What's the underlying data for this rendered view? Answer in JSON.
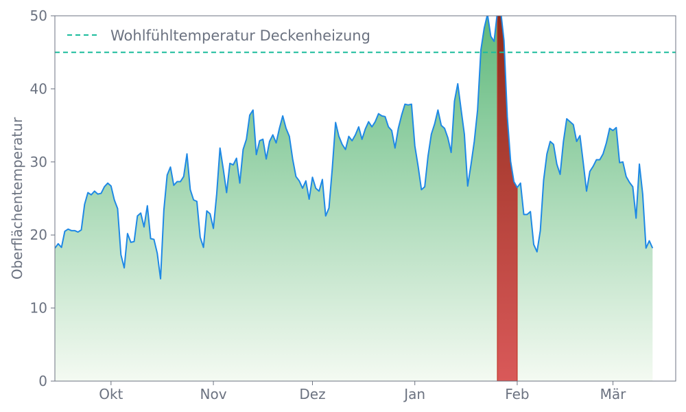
{
  "chart_data": {
    "type": "area",
    "title": "",
    "xlabel": "",
    "ylabel": "Oberflächentemperatur",
    "ylim": [
      0,
      50
    ],
    "xlim": [
      "2023-09-14",
      "2024-03-20"
    ],
    "yticks": [
      0,
      10,
      20,
      30,
      40,
      50
    ],
    "xticks": [
      {
        "date": "2023-10-01",
        "label": "Okt"
      },
      {
        "date": "2023-11-01",
        "label": "Nov"
      },
      {
        "date": "2023-12-01",
        "label": "Dez"
      },
      {
        "date": "2024-01-01",
        "label": "Jan"
      },
      {
        "date": "2024-02-01",
        "label": "Feb"
      },
      {
        "date": "2024-03-01",
        "label": "Mär"
      }
    ],
    "grid": false,
    "legend_position": "top-left",
    "threshold": {
      "name": "Wohlfühltemperatur Deckenheizung",
      "value": 45
    },
    "highlight_range": {
      "start": "2024-01-26",
      "end": "2024-02-01"
    },
    "series": [
      {
        "start_date": "2023-09-14",
        "step_days": 1,
        "values": [
          18.2,
          18.8,
          18.3,
          20.5,
          20.8,
          20.6,
          20.6,
          20.4,
          20.7,
          24.2,
          25.8,
          25.5,
          26.0,
          25.6,
          25.7,
          26.6,
          27.1,
          26.7,
          24.8,
          23.6,
          17.3,
          15.5,
          20.2,
          19.0,
          19.1,
          22.6,
          23.0,
          21.1,
          24.0,
          19.5,
          19.4,
          17.5,
          14.0,
          23.4,
          28.2,
          29.3,
          26.8,
          27.3,
          27.3,
          28.0,
          31.1,
          26.2,
          24.8,
          24.6,
          19.7,
          18.3,
          23.3,
          22.9,
          20.9,
          25.6,
          31.9,
          29.0,
          25.8,
          29.8,
          29.6,
          30.5,
          27.1,
          31.7,
          33.1,
          36.4,
          37.1,
          31.0,
          32.9,
          33.1,
          30.4,
          32.8,
          33.7,
          32.6,
          34.6,
          36.3,
          34.6,
          33.5,
          30.4,
          28.0,
          27.4,
          26.4,
          27.4,
          24.9,
          27.9,
          26.4,
          26.0,
          27.6,
          22.6,
          23.7,
          29.1,
          35.4,
          33.5,
          32.4,
          31.7,
          33.5,
          32.9,
          33.7,
          34.8,
          33.1,
          34.5,
          35.5,
          34.8,
          35.5,
          36.6,
          36.3,
          36.2,
          34.8,
          34.3,
          31.9,
          34.6,
          36.4,
          37.9,
          37.8,
          37.9,
          32.2,
          29.4,
          26.2,
          26.6,
          30.8,
          33.8,
          35.2,
          37.1,
          35.0,
          34.6,
          33.3,
          31.3,
          38.3,
          40.7,
          37.2,
          33.8,
          26.7,
          29.6,
          32.8,
          37.1,
          45.3,
          48.3,
          50.2,
          47.2,
          46.5,
          50.5,
          50.7,
          46.6,
          36.2,
          30.1,
          27.3,
          26.5,
          27.1,
          22.8,
          22.8,
          23.2,
          18.7,
          17.7,
          20.6,
          27.5,
          31.1,
          32.8,
          32.4,
          29.7,
          28.3,
          32.8,
          35.9,
          35.5,
          35.1,
          32.8,
          33.6,
          29.9,
          26.0,
          28.7,
          29.4,
          30.3,
          30.3,
          31.1,
          32.6,
          34.6,
          34.3,
          34.7,
          29.9,
          30.0,
          28.0,
          27.2,
          26.6,
          22.3,
          29.7,
          25.6,
          18.2,
          19.2,
          18.2
        ]
      }
    ],
    "colors": {
      "line": "#1e88e5",
      "threshold": "#1abc9c",
      "fill_top": "#5db87a",
      "fill_bottom": "#f4faf2",
      "highlight_top": "#8e2b1a",
      "highlight_bottom": "#d95959",
      "axis": "#6b7280"
    }
  }
}
